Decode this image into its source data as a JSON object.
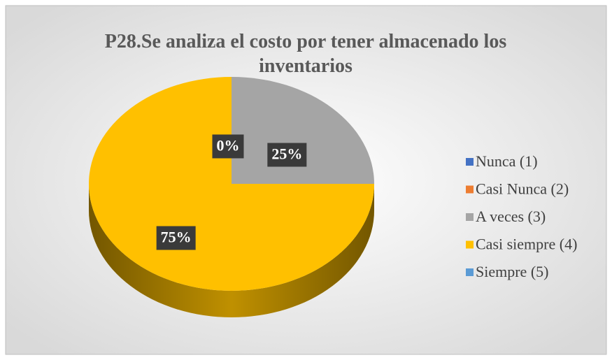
{
  "chart_data": {
    "type": "pie",
    "title": "P28.Se analiza el costo por tener almacenado los inventarios",
    "categories": [
      "Nunca (1)",
      "Casi Nunca (2)",
      "A veces (3)",
      "Casi siempre (4)",
      "Siempre (5)"
    ],
    "values": [
      0,
      0,
      25,
      75,
      0
    ],
    "value_labels": [
      "0%",
      null,
      "25%",
      "75%",
      null
    ],
    "colors": [
      "#4472c4",
      "#ed7d31",
      "#a5a5a5",
      "#ffc000",
      "#5b9bd5"
    ],
    "legend": "right"
  }
}
